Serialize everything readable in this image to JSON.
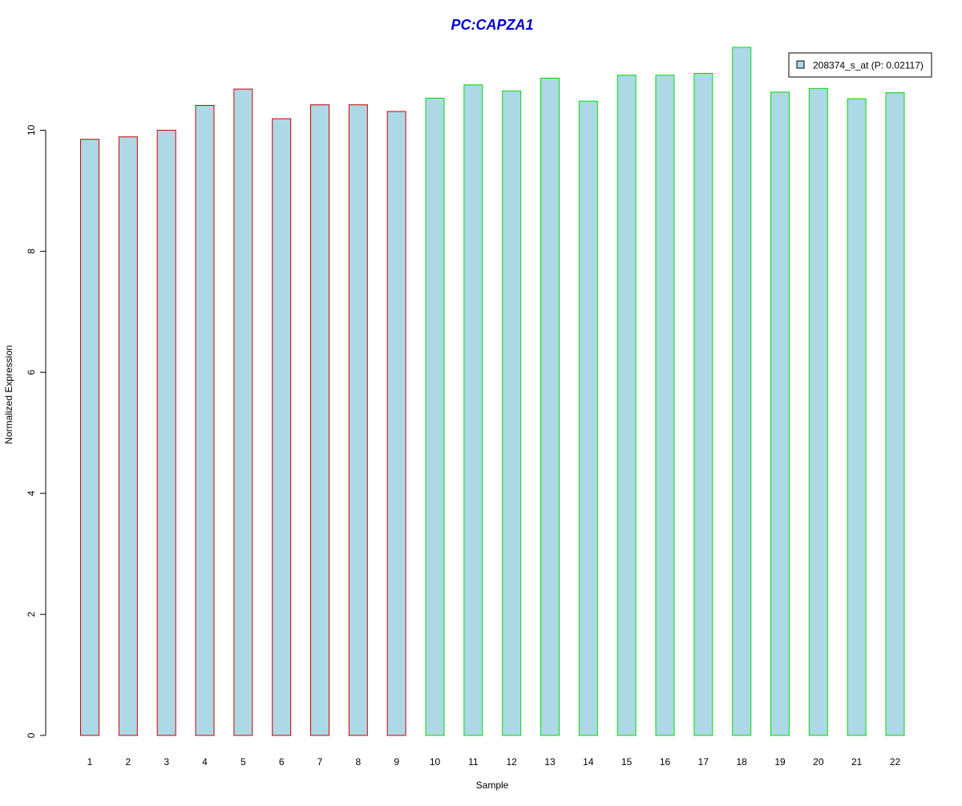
{
  "chart_data": {
    "type": "bar",
    "title": "PC:CAPZA1",
    "xlabel": "Sample",
    "ylabel": "Normalized Expression",
    "categories": [
      "1",
      "2",
      "3",
      "4",
      "5",
      "6",
      "7",
      "8",
      "9",
      "10",
      "11",
      "12",
      "13",
      "14",
      "15",
      "16",
      "17",
      "18",
      "19",
      "20",
      "21",
      "22"
    ],
    "series": [
      {
        "name": "208374_s_at (P: 0.02117)",
        "values": [
          9.85,
          9.89,
          10.0,
          10.41,
          10.68,
          10.19,
          10.42,
          10.42,
          10.31,
          10.53,
          10.75,
          10.65,
          10.86,
          10.48,
          10.91,
          10.91,
          10.94,
          11.37,
          10.63,
          10.69,
          10.52,
          10.62
        ]
      }
    ],
    "groups": [
      1,
      1,
      1,
      1,
      1,
      1,
      1,
      1,
      1,
      2,
      2,
      2,
      2,
      2,
      2,
      2,
      2,
      2,
      2,
      2,
      2,
      2
    ],
    "ylim": [
      0,
      11.37
    ],
    "yticks": [
      0,
      2,
      4,
      6,
      8,
      10
    ],
    "grid": false,
    "legend_position": "top-right",
    "colors": {
      "title": "#0000cc",
      "bar_fill": "#add8e6",
      "group1_border": "#cc0000",
      "group2_border": "#00dd00",
      "axis": "#000000",
      "legend_border": "#000000"
    }
  }
}
